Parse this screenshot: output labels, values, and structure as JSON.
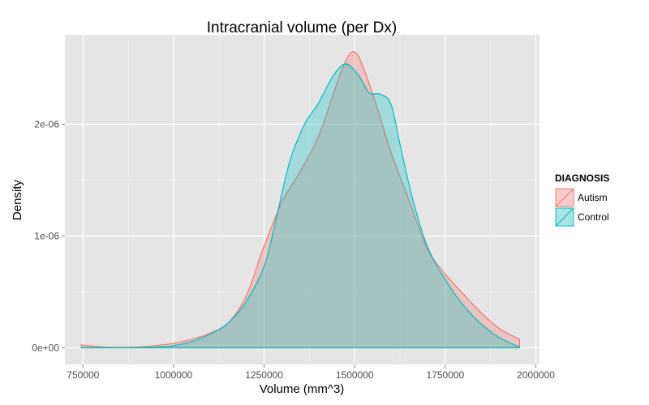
{
  "chart_data": {
    "type": "area",
    "title": "Intracranial volume (per Dx)",
    "xlabel": "Volume (mm^3)",
    "ylabel": "Density",
    "xlim": [
      700000,
      2010000
    ],
    "ylim": [
      -1.5e-07,
      2.8e-06
    ],
    "x_ticks": [
      {
        "value": 750000,
        "label": "750000"
      },
      {
        "value": 1000000,
        "label": "1000000"
      },
      {
        "value": 1250000,
        "label": "1250000"
      },
      {
        "value": 1500000,
        "label": "1500000"
      },
      {
        "value": 1750000,
        "label": "1750000"
      },
      {
        "value": 2000000,
        "label": "2000000"
      }
    ],
    "y_ticks": [
      {
        "value": 0,
        "label": "0e+00"
      },
      {
        "value": 1e-06,
        "label": "1e-06"
      },
      {
        "value": 2e-06,
        "label": "2e-06"
      }
    ],
    "grid": true,
    "legend": {
      "title": "DIAGNOSIS",
      "position": "right"
    },
    "series": [
      {
        "name": "Autism",
        "color": "#F8766D",
        "fill": "rgba(248,118,109,0.3)",
        "points": [
          [
            745000,
            2.5e-08
          ],
          [
            775000,
            1.5e-08
          ],
          [
            800000,
            8e-09
          ],
          [
            850000,
            3e-09
          ],
          [
            900000,
            6e-09
          ],
          [
            950000,
            1.8e-08
          ],
          [
            1000000,
            4e-08
          ],
          [
            1050000,
            7.5e-08
          ],
          [
            1100000,
            1.3e-07
          ],
          [
            1150000,
            2.2e-07
          ],
          [
            1200000,
            4.6e-07
          ],
          [
            1250000,
            9.1e-07
          ],
          [
            1300000,
            1.31e-06
          ],
          [
            1350000,
            1.58e-06
          ],
          [
            1400000,
            1.89e-06
          ],
          [
            1440000,
            2.26e-06
          ],
          [
            1470000,
            2.53e-06
          ],
          [
            1495000,
            2.65e-06
          ],
          [
            1520000,
            2.54e-06
          ],
          [
            1560000,
            2.17e-06
          ],
          [
            1600000,
            1.75e-06
          ],
          [
            1650000,
            1.32e-06
          ],
          [
            1700000,
            8.9e-07
          ],
          [
            1750000,
            6.6e-07
          ],
          [
            1800000,
            4.8e-07
          ],
          [
            1850000,
            3.1e-07
          ],
          [
            1900000,
            1.7e-07
          ],
          [
            1955000,
            7.5e-08
          ]
        ]
      },
      {
        "name": "Control",
        "color": "#00BFC4",
        "fill": "rgba(0,191,196,0.3)",
        "points": [
          [
            745000,
            3e-09
          ],
          [
            800000,
            2e-09
          ],
          [
            850000,
            1e-09
          ],
          [
            900000,
            2e-09
          ],
          [
            950000,
            6e-09
          ],
          [
            1000000,
            1.8e-08
          ],
          [
            1050000,
            5.5e-08
          ],
          [
            1100000,
            1.2e-07
          ],
          [
            1150000,
            2.2e-07
          ],
          [
            1200000,
            4.1e-07
          ],
          [
            1250000,
            7.3e-07
          ],
          [
            1280000,
            1.11e-06
          ],
          [
            1320000,
            1.66e-06
          ],
          [
            1360000,
            1.99e-06
          ],
          [
            1400000,
            2.19e-06
          ],
          [
            1440000,
            2.43e-06
          ],
          [
            1475000,
            2.54e-06
          ],
          [
            1510000,
            2.44e-06
          ],
          [
            1540000,
            2.28e-06
          ],
          [
            1570000,
            2.27e-06
          ],
          [
            1600000,
            2.18e-06
          ],
          [
            1625000,
            1.82e-06
          ],
          [
            1660000,
            1.33e-06
          ],
          [
            1700000,
            9.1e-07
          ],
          [
            1750000,
            6.1e-07
          ],
          [
            1800000,
            3.8e-07
          ],
          [
            1850000,
            2.1e-07
          ],
          [
            1900000,
            9e-08
          ],
          [
            1955000,
            5e-09
          ]
        ]
      }
    ]
  }
}
